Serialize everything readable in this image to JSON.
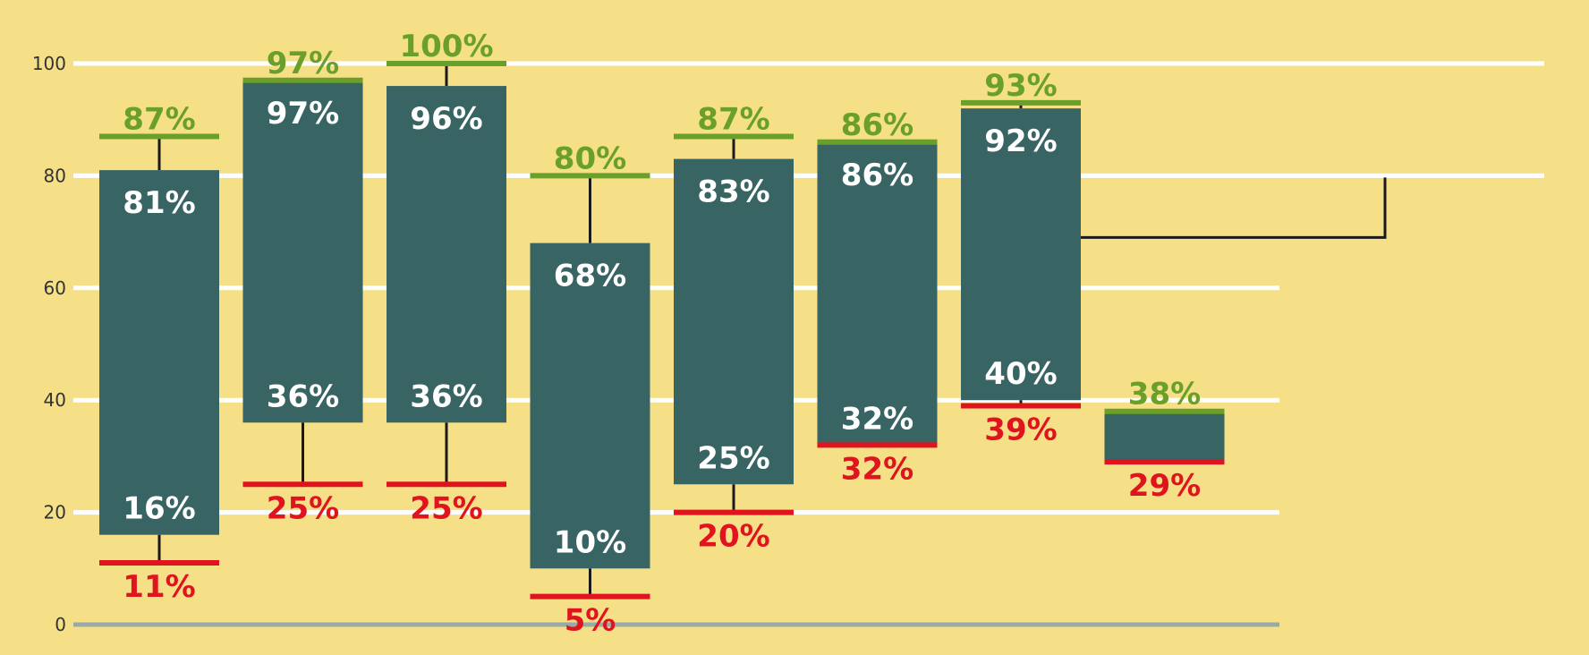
{
  "chart_data": {
    "type": "boxplot",
    "title": "",
    "xlabel": "",
    "ylabel": "",
    "ylim": [
      0,
      100
    ],
    "yticks": [
      "0",
      "20",
      "40",
      "60",
      "80",
      "100"
    ],
    "grid": true,
    "boxes": [
      {
        "max": 87,
        "q3": 81,
        "q1": 16,
        "min": 11,
        "max_label": "87%",
        "q3_label": "81%",
        "q1_label": "16%",
        "min_label": "11%"
      },
      {
        "max": 97,
        "q3": 97,
        "q1": 36,
        "min": 25,
        "max_label": "97%",
        "q3_label": "97%",
        "q1_label": "36%",
        "min_label": "25%"
      },
      {
        "max": 100,
        "q3": 96,
        "q1": 36,
        "min": 25,
        "max_label": "100%",
        "q3_label": "96%",
        "q1_label": "36%",
        "min_label": "25%"
      },
      {
        "max": 80,
        "q3": 68,
        "q1": 10,
        "min": 5,
        "max_label": "80%",
        "q3_label": "68%",
        "q1_label": "10%",
        "min_label": "5%"
      },
      {
        "max": 87,
        "q3": 83,
        "q1": 25,
        "min": 20,
        "max_label": "87%",
        "q3_label": "83%",
        "q1_label": "25%",
        "min_label": "20%"
      },
      {
        "max": 86,
        "q3": 86,
        "q1": 32,
        "min": 32,
        "max_label": "86%",
        "q3_label": "86%",
        "q1_label": "32%",
        "min_label": "32%"
      },
      {
        "max": 93,
        "q3": 92,
        "q1": 40,
        "min": 39,
        "max_label": "93%",
        "q3_label": "92%",
        "q1_label": "40%",
        "min_label": "39%"
      },
      {
        "max": 38,
        "q3": 38,
        "q1": 29,
        "min": 29,
        "max_label": "38%",
        "q3_label": "",
        "q1_label": "",
        "min_label": "29%"
      }
    ],
    "colors": {
      "background": "#f5e088",
      "box": "#386464",
      "max_marker": "#6a9f2a",
      "min_marker": "#e0141e",
      "inside_label": "#ffffff",
      "grid": "#ffffff",
      "baseline": "#9aaaa8",
      "whisker": "#1a1a1a"
    }
  }
}
